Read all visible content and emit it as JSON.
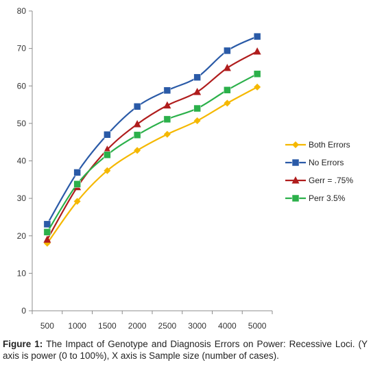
{
  "chart_data": {
    "type": "line",
    "categories": [
      "500",
      "1000",
      "1500",
      "2000",
      "2500",
      "3000",
      "4000",
      "5000"
    ],
    "series": [
      {
        "name": "Both Errors",
        "color": "#f5b800",
        "marker": "diamond",
        "values": [
          18,
          29.2,
          37.4,
          42.8,
          47.1,
          50.7,
          55.4,
          59.7
        ]
      },
      {
        "name": "No Errors",
        "color": "#2a5aa7",
        "marker": "square",
        "values": [
          23.1,
          36.9,
          47,
          54.5,
          58.8,
          62.3,
          69.4,
          73.2
        ]
      },
      {
        "name": "Gerr = .75%",
        "color": "#b01d1d",
        "marker": "triangle",
        "values": [
          19,
          33,
          43,
          49.8,
          54.8,
          58.4,
          64.8,
          69.2
        ]
      },
      {
        "name": "Perr 3.5%",
        "color": "#2bb04a",
        "marker": "square",
        "values": [
          21,
          33.8,
          41.6,
          46.9,
          51.1,
          54,
          58.9,
          63.2
        ]
      }
    ],
    "ylim": [
      0,
      80
    ],
    "yticks": [
      0,
      10,
      20,
      30,
      40,
      50,
      60,
      70,
      80
    ],
    "legend_position": "right",
    "grid": false
  },
  "caption": {
    "label": "Figure 1:",
    "text": " The Impact of Genotype and Diagnosis Errors on Power: Recessive Loci. (Y axis is power (0 to 100%), X axis is Sample size (number of cases)."
  }
}
